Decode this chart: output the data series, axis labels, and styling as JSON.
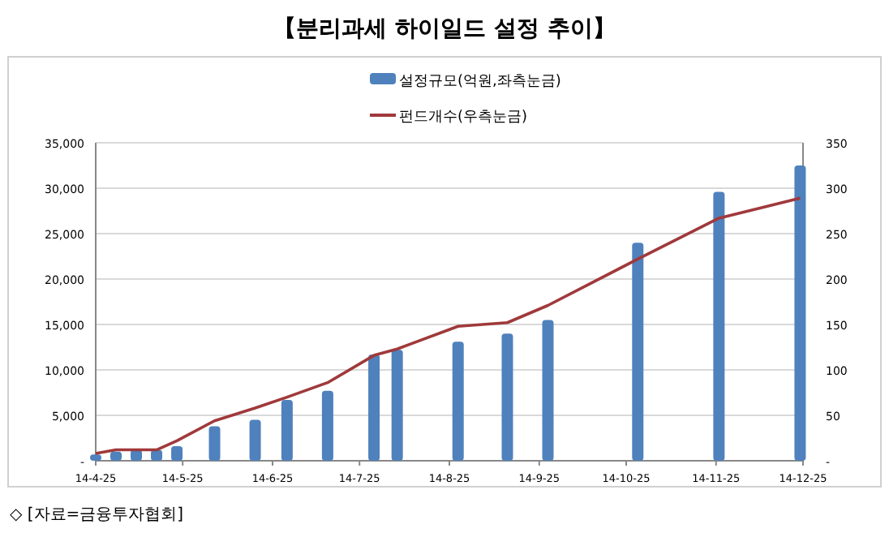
{
  "chart_data": {
    "type": "bar",
    "title": "【분리과세 하이일드 설정 추이】",
    "annotations": [
      "◇ [자료=금융투자협회]"
    ],
    "x": [
      "--04-25",
      "--05-02",
      "--05-09",
      "--05-16",
      "--05-23",
      "--06-05",
      "--06-19",
      "--06-30",
      "--07-14",
      "--07-30",
      "--08-07",
      "--08-28",
      "--09-14",
      "--09-28",
      "--10-29",
      "--11-26",
      "--12-24"
    ],
    "series": [
      {
        "name": "설정규모(억원,좌측눈금)",
        "color": "#4f81bd",
        "values": [
          700,
          1000,
          1200,
          1200,
          1600,
          3800,
          4500,
          6700,
          7700,
          11700,
          12200,
          13100,
          14000,
          15500,
          24000,
          29600,
          32500
        ]
      },
      {
        "name": "펀드개수(우측눈금)",
        "type": "line",
        "axis": "y2",
        "color": "#a0393b",
        "values": [
          8,
          12,
          12,
          12,
          22,
          44,
          58,
          70,
          86,
          116,
          123,
          148,
          152,
          171,
          222,
          267,
          289
        ]
      }
    ],
    "xlim": [
      "--04-25",
      "--12-25"
    ],
    "xticks": [
      {
        "value": "--04-25",
        "label": "14-4-25"
      },
      {
        "value": "--05-25",
        "label": "14-5-25"
      },
      {
        "value": "--06-25",
        "label": "14-6-25"
      },
      {
        "value": "--07-25",
        "label": "14-7-25"
      },
      {
        "value": "--08-25",
        "label": "14-8-25"
      },
      {
        "value": "--09-25",
        "label": "14-9-25"
      },
      {
        "value": "--10-25",
        "label": "14-10-25"
      },
      {
        "value": "--11-25",
        "label": "14-11-25"
      },
      {
        "value": "--12-25",
        "label": "14-12-25"
      }
    ],
    "ylim": [
      0,
      35000
    ],
    "yticks": [
      {
        "value": 0,
        "label": "-"
      },
      {
        "value": 5000,
        "label": "5,000"
      },
      {
        "value": 10000,
        "label": "10,000"
      },
      {
        "value": 15000,
        "label": "15,000"
      },
      {
        "value": 20000,
        "label": "20,000"
      },
      {
        "value": 25000,
        "label": "25,000"
      },
      {
        "value": 30000,
        "label": "30,000"
      },
      {
        "value": 35000,
        "label": "35,000"
      }
    ],
    "y2lim": [
      0,
      350
    ],
    "y2ticks": [
      {
        "value": 0,
        "label": "-"
      },
      50,
      100,
      150,
      200,
      250,
      300,
      350
    ],
    "grid": "y",
    "legend": "top"
  }
}
